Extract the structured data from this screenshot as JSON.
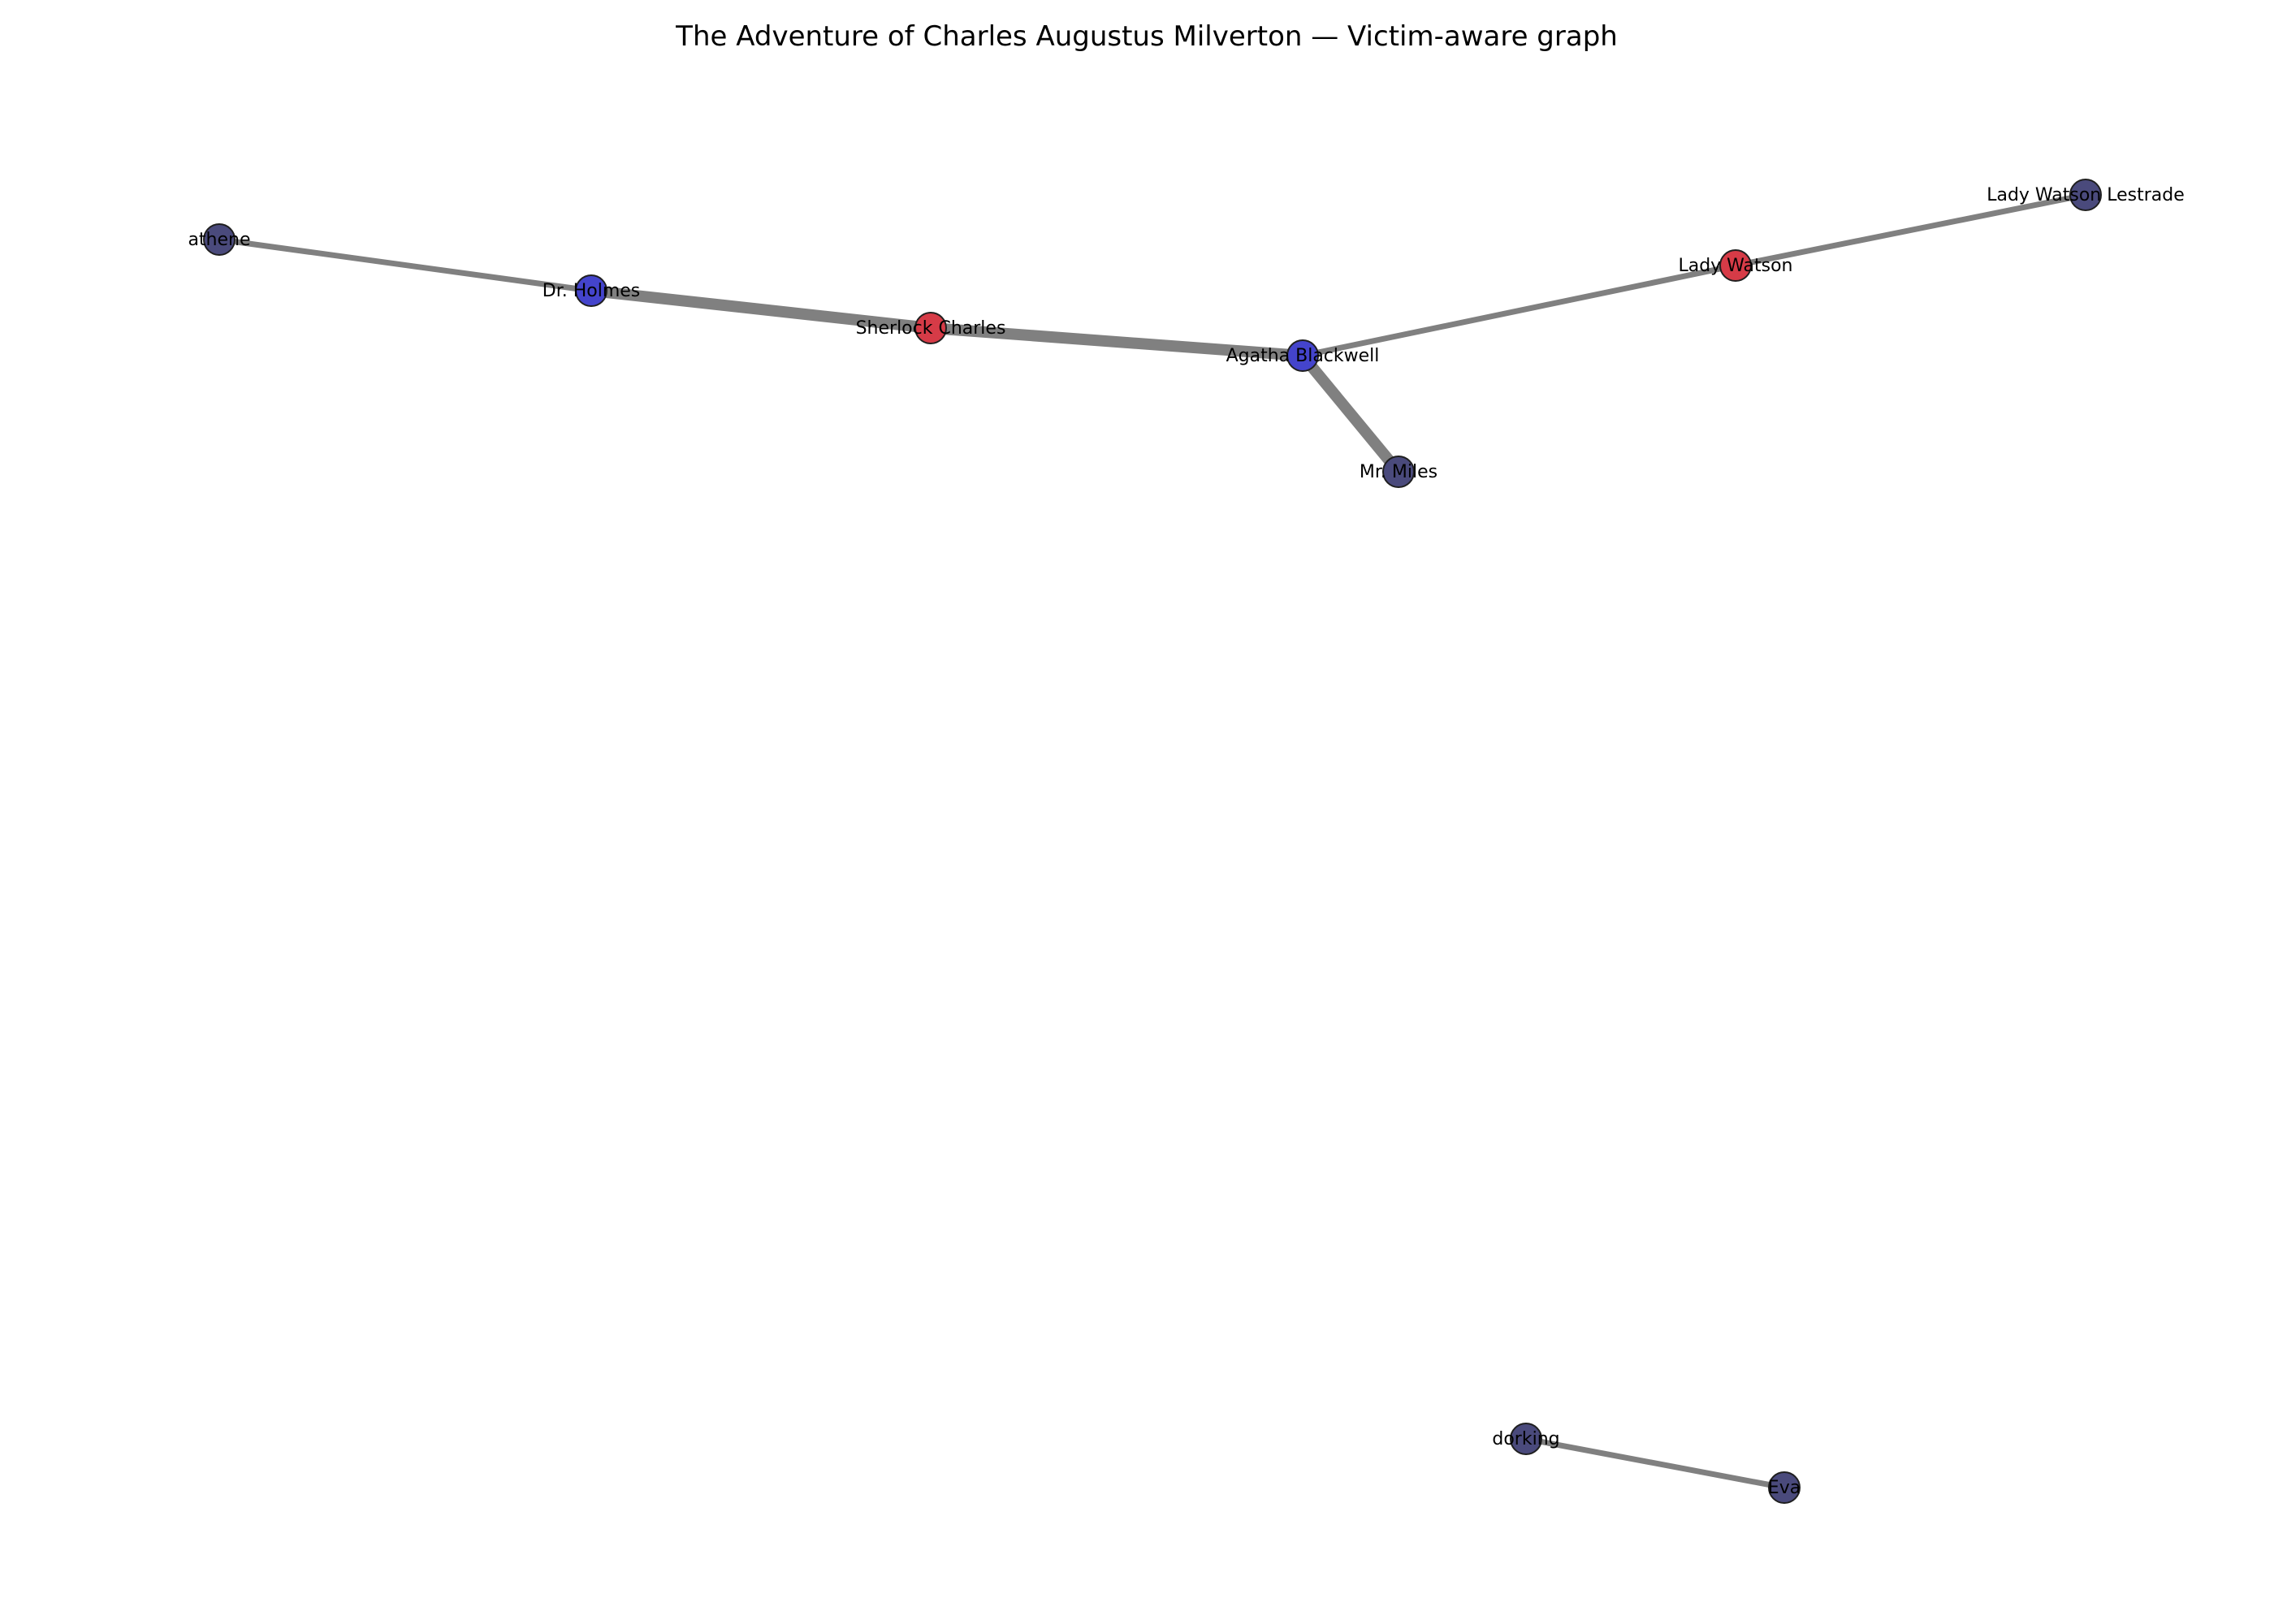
{
  "title": "The Adventure of Charles Augustus Milverton — Victim-aware graph",
  "colors": {
    "victim": "#d63b47",
    "suspect": "#4444cc",
    "other": "#4a4a7c",
    "edge": "#808080"
  },
  "nodes": [
    {
      "id": "athene",
      "label": "athene",
      "role": "other"
    },
    {
      "id": "dr-holmes",
      "label": "Dr. Holmes",
      "role": "suspect"
    },
    {
      "id": "sherlock-charles",
      "label": "Sherlock Charles",
      "role": "victim"
    },
    {
      "id": "agatha-blackwell",
      "label": "Agatha Blackwell",
      "role": "suspect"
    },
    {
      "id": "mr-miles",
      "label": "Mr. Miles",
      "role": "other"
    },
    {
      "id": "lady-watson",
      "label": "Lady Watson",
      "role": "victim"
    },
    {
      "id": "lady-watson-lestrade",
      "label": "Lady Watson Lestrade",
      "role": "other"
    },
    {
      "id": "dorking",
      "label": "dorking",
      "role": "other"
    },
    {
      "id": "eva",
      "label": "Eva",
      "role": "other"
    }
  ],
  "edges": [
    {
      "source": "athene",
      "target": "dr-holmes",
      "weight": 1
    },
    {
      "source": "dr-holmes",
      "target": "sherlock-charles",
      "weight": 2.5
    },
    {
      "source": "sherlock-charles",
      "target": "agatha-blackwell",
      "weight": 2.5
    },
    {
      "source": "agatha-blackwell",
      "target": "mr-miles",
      "weight": 2.5
    },
    {
      "source": "agatha-blackwell",
      "target": "lady-watson",
      "weight": 1
    },
    {
      "source": "lady-watson",
      "target": "lady-watson-lestrade",
      "weight": 1
    },
    {
      "source": "dorking",
      "target": "eva",
      "weight": 1
    }
  ]
}
